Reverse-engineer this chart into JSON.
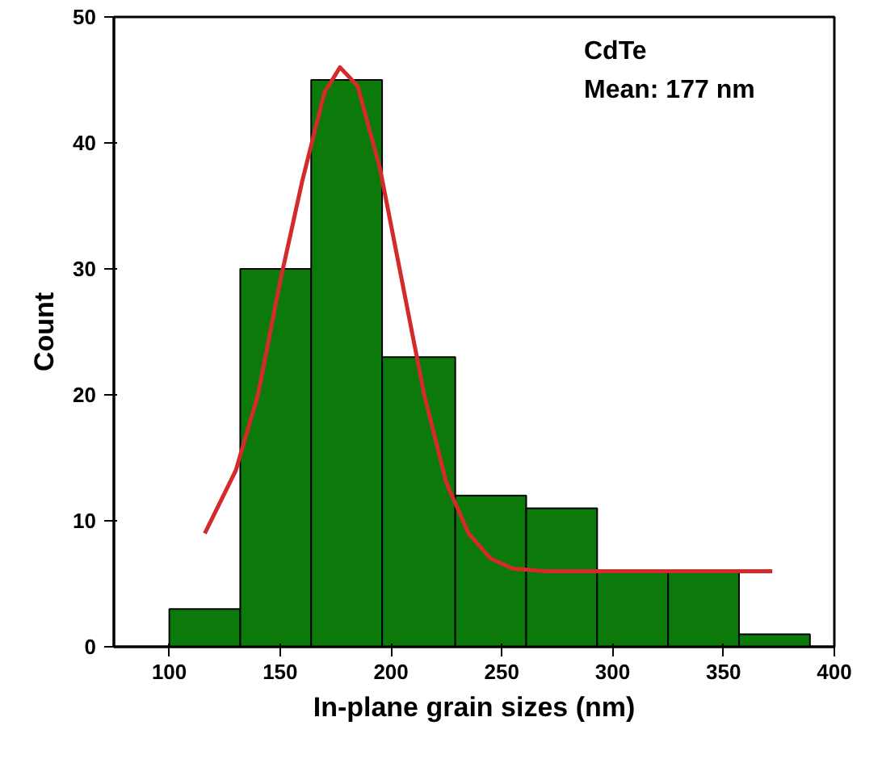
{
  "chart_data": {
    "type": "histogram",
    "xlabel": "In-plane grain sizes (nm)",
    "ylabel": "Count",
    "bins": [
      100,
      132,
      164,
      196,
      229,
      261,
      293,
      325,
      357,
      389
    ],
    "values": [
      3,
      30,
      45,
      23,
      12,
      11,
      6,
      6,
      1
    ],
    "color": "#0b7a0b",
    "series": [
      {
        "type": "line",
        "color": "#d42a2a",
        "x": [
          116,
          130,
          140,
          150,
          160,
          170,
          177,
          185,
          195,
          205,
          215,
          225,
          235,
          245,
          255,
          270,
          300,
          340,
          372
        ],
        "values": [
          9,
          14,
          20,
          29,
          37,
          44,
          46,
          44.5,
          38,
          29,
          20,
          13,
          9,
          7,
          6.2,
          6,
          6,
          6,
          6
        ]
      }
    ],
    "annotations": [
      "CdTe",
      "Mean: 177 nm"
    ],
    "xlim": [
      75,
      400
    ],
    "xticks": [
      100,
      150,
      200,
      250,
      300,
      350,
      400
    ],
    "ylim": [
      0,
      50
    ],
    "yticks": [
      0,
      10,
      20,
      30,
      40,
      50
    ],
    "grid": false
  }
}
